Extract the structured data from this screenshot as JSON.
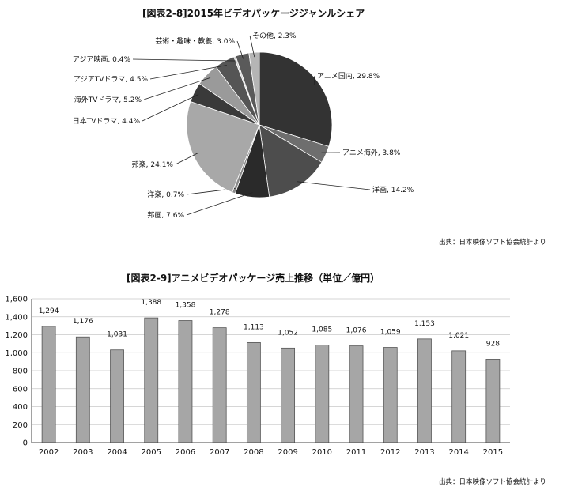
{
  "pie": {
    "title": "[図表2-8]2015年ビデオパッケージジャンルシェア",
    "source": "出典：日本映像ソフト協会統計より"
  },
  "bar": {
    "title": "[図表2-9]アニメビデオパッケージ売上推移（単位／億円）",
    "source": "出典：日本映像ソフト協会統計より"
  },
  "colors": {
    "pie_slices": [
      "#333333",
      "#6e6e6e",
      "#4d4d4d",
      "#2a2a2a",
      "#888888",
      "#a8a8a8",
      "#3a3a3a",
      "#9a9a9a",
      "#555555",
      "#d0d0d0",
      "#5a5a5a",
      "#b5b5b5"
    ],
    "bar_fill": "#a6a6a6",
    "bar_stroke": "#555555"
  },
  "chart_data": [
    {
      "type": "pie",
      "title": "[図表2-8]2015年ビデオパッケージジャンルシェア",
      "start": "12 o'clock",
      "direction": "clockwise",
      "slices": [
        {
          "label": "アニメ国内, 29.8%",
          "value": 29.8
        },
        {
          "label": "アニメ海外, 3.8%",
          "value": 3.8
        },
        {
          "label": "洋画, 14.2%",
          "value": 14.2
        },
        {
          "label": "邦画, 7.6%",
          "value": 7.6
        },
        {
          "label": "洋楽, 0.7%",
          "value": 0.7
        },
        {
          "label": "邦楽, 24.1%",
          "value": 24.1
        },
        {
          "label": "日本TVドラマ, 4.4%",
          "value": 4.4
        },
        {
          "label": "海外TVドラマ, 5.2%",
          "value": 5.2
        },
        {
          "label": "アジアTVドラマ, 4.5%",
          "value": 4.5
        },
        {
          "label": "アジア映画, 0.4%",
          "value": 0.4
        },
        {
          "label": "芸術・趣味・教養, 3.0%",
          "value": 3.0
        },
        {
          "label": "その他, 2.3%",
          "value": 2.3
        }
      ]
    },
    {
      "type": "bar",
      "title": "[図表2-9]アニメビデオパッケージ売上推移（単位／億円）",
      "categories": [
        "2002",
        "2003",
        "2004",
        "2005",
        "2006",
        "2007",
        "2008",
        "2009",
        "2010",
        "2011",
        "2012",
        "2013",
        "2014",
        "2015"
      ],
      "values": [
        1294,
        1176,
        1031,
        1388,
        1358,
        1278,
        1113,
        1052,
        1085,
        1076,
        1059,
        1153,
        1021,
        928
      ],
      "value_labels": [
        "1,294",
        "1,176",
        "1,031",
        "1,388",
        "1,358",
        "1,278",
        "1,113",
        "1,052",
        "1,085",
        "1,076",
        "1,059",
        "1,153",
        "1,021",
        "928"
      ],
      "ylim": [
        0,
        1600
      ],
      "yticks": [
        0,
        200,
        400,
        600,
        800,
        1000,
        1200,
        1400,
        1600
      ],
      "ytick_labels": [
        "0",
        "200",
        "400",
        "600",
        "800",
        "1,000",
        "1,200",
        "1,400",
        "1,600"
      ],
      "grid": true
    }
  ]
}
